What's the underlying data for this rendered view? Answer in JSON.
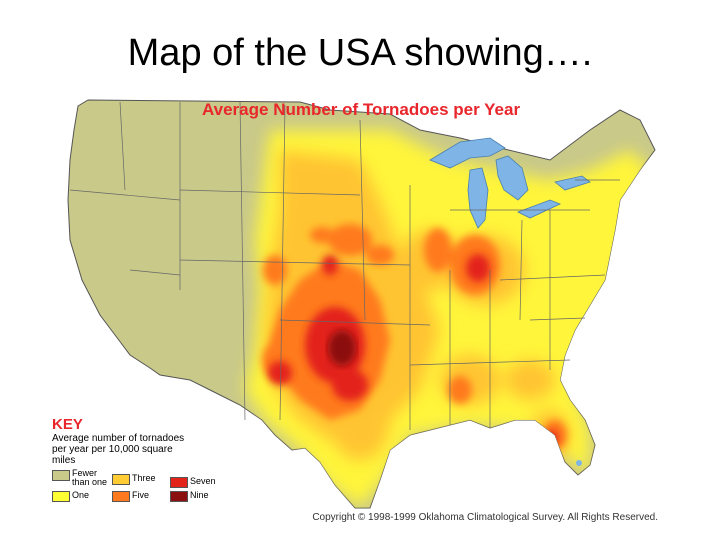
{
  "slide": {
    "title": "Map of the USA showing…."
  },
  "map": {
    "title": "Average Number of Tornadoes per Year",
    "copyright": "Copyright © 1998-1999 Oklahoma Climatological Survey. All Rights Reserved."
  },
  "key": {
    "title": "KEY",
    "description": "Average number of tornadoes per year per 10,000 square miles",
    "items": [
      {
        "label": "Fewer than one",
        "color": "#c9c98a"
      },
      {
        "label": "One",
        "color": "#ffff33"
      },
      {
        "label": "Three",
        "color": "#ffcc33"
      },
      {
        "label": "Five",
        "color": "#ff7a1f"
      },
      {
        "label": "Seven",
        "color": "#e3241b"
      },
      {
        "label": "Nine",
        "color": "#8b1010"
      }
    ]
  },
  "colors": {
    "water": "#7fb5e6",
    "title_red": "#e8262b",
    "land_base": "#c9c98a"
  }
}
